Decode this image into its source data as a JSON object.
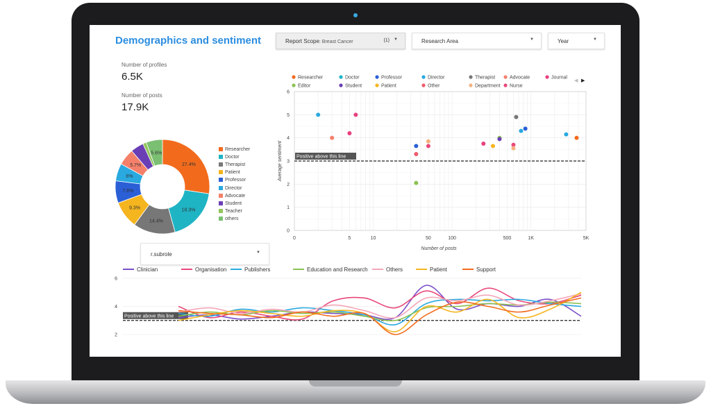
{
  "header": {
    "title": "Demographics and sentiment",
    "report_scope_label": "Report Scope",
    "report_scope_value": ": Breast Cancer",
    "report_scope_count": "(1)",
    "research_area_label": "Research Area",
    "year_label": "Year"
  },
  "kpis": {
    "profiles_label": "Number of profiles",
    "profiles_value": "6.5K",
    "posts_label": "Number of posts",
    "posts_value": "17.9K"
  },
  "subrole_dropdown": {
    "label": "r.subrole"
  },
  "colors": {
    "Researcher": "#f26b1d",
    "Doctor": "#1fb4c4",
    "Professor": "#2a5fd6",
    "Director": "#29a9e0",
    "Therapist": "#777777",
    "Advocate": "#f4806a",
    "Journal": "#e8407f",
    "Editor": "#8cc152",
    "Student": "#6a3fb5",
    "Patient": "#f5b51f",
    "Other": "#ef5b6b",
    "Department": "#f5b07e",
    "Nurse": "#e8497a",
    "Teacher": "#92c55c",
    "others": "#7bbf72"
  },
  "chart_data": [
    {
      "type": "pie",
      "slices": [
        {
          "label": "Researcher",
          "value": 27.4,
          "text": "27.4%"
        },
        {
          "label": "Doctor",
          "value": 18.3,
          "text": "18.3%"
        },
        {
          "label": "Therapist",
          "value": 14.4,
          "text": "14.4%"
        },
        {
          "label": "Patient",
          "value": 9.3,
          "text": "9.3%"
        },
        {
          "label": "Professor",
          "value": 7.6,
          "text": "7.6%"
        },
        {
          "label": "Director",
          "value": 6.0,
          "text": "6%"
        },
        {
          "label": "Advocate",
          "value": 5.7,
          "text": "5.7%"
        },
        {
          "label": "Student",
          "value": 4.5,
          "text": ""
        },
        {
          "label": "Teacher",
          "value": 1.2,
          "text": ""
        },
        {
          "label": "others",
          "value": 5.6,
          "text": "5.6%"
        }
      ],
      "legend": [
        "Researcher",
        "Doctor",
        "Therapist",
        "Patient",
        "Professor",
        "Director",
        "Advocate",
        "Student",
        "Teacher",
        "others"
      ]
    },
    {
      "type": "scatter",
      "xlabel": "Number of posts",
      "ylabel": "Average sentiment",
      "x_scale": "log",
      "x_ticks": [
        "0",
        "5",
        "10",
        "50",
        "100",
        "500",
        "1K",
        "5K"
      ],
      "x_tick_values": [
        1,
        5,
        10,
        50,
        100,
        500,
        1000,
        5000
      ],
      "ylim": [
        0,
        6
      ],
      "y_ticks": [
        "0",
        "1",
        "2",
        "3",
        "4",
        "5",
        "6"
      ],
      "reference_line": {
        "y": 3,
        "label": "Positive above this line"
      },
      "legend": [
        "Researcher",
        "Doctor",
        "Professor",
        "Director",
        "Therapist",
        "Advocate",
        "Journal",
        "Editor",
        "Student",
        "Patient",
        "Other",
        "Department",
        "Nurse"
      ],
      "points": [
        {
          "series": "Director",
          "x": 2,
          "y": 5.0
        },
        {
          "series": "Journal",
          "x": 6,
          "y": 5.0
        },
        {
          "series": "Advocate",
          "x": 3,
          "y": 4.0
        },
        {
          "series": "Journal",
          "x": 5,
          "y": 4.2
        },
        {
          "series": "Professor",
          "x": 35,
          "y": 3.65
        },
        {
          "series": "Other",
          "x": 35,
          "y": 3.3
        },
        {
          "series": "Editor",
          "x": 35,
          "y": 2.05
        },
        {
          "series": "Department",
          "x": 50,
          "y": 3.85
        },
        {
          "series": "Nurse",
          "x": 50,
          "y": 3.65
        },
        {
          "series": "Journal",
          "x": 250,
          "y": 3.75
        },
        {
          "series": "Patient",
          "x": 330,
          "y": 3.65
        },
        {
          "series": "Editor",
          "x": 400,
          "y": 4.0
        },
        {
          "series": "Student",
          "x": 400,
          "y": 3.95
        },
        {
          "series": "Nurse",
          "x": 600,
          "y": 3.7
        },
        {
          "series": "Department",
          "x": 600,
          "y": 3.55
        },
        {
          "series": "Therapist",
          "x": 650,
          "y": 4.9
        },
        {
          "series": "Director",
          "x": 750,
          "y": 4.3
        },
        {
          "series": "Professor",
          "x": 850,
          "y": 4.4
        },
        {
          "series": "Director",
          "x": 2800,
          "y": 4.15
        },
        {
          "series": "Researcher",
          "x": 3800,
          "y": 4.0
        }
      ]
    },
    {
      "type": "line",
      "ylim": [
        2,
        6
      ],
      "y_ticks": [
        "2",
        "4",
        "6"
      ],
      "reference_line": {
        "y": 3,
        "label": "Positive above this line"
      },
      "x": [
        0,
        1,
        2,
        3,
        4,
        5,
        6,
        7,
        8,
        9,
        10,
        11,
        12,
        13
      ],
      "series": [
        {
          "name": "Clinician",
          "color": "#7b4fc9",
          "values": [
            3.2,
            3.4,
            3.1,
            3.3,
            3.6,
            3.5,
            3.4,
            3.2,
            5.5,
            3.8,
            4.2,
            4.0,
            4.5,
            3.3
          ]
        },
        {
          "name": "Organisation",
          "color": "#e8497a",
          "values": [
            4.0,
            3.2,
            3.6,
            3.3,
            3.1,
            4.4,
            4.6,
            3.9,
            5.1,
            4.2,
            5.3,
            4.4,
            4.2,
            4.8
          ]
        },
        {
          "name": "Publishers",
          "color": "#29a9e0",
          "values": [
            3.5,
            3.3,
            3.8,
            3.6,
            3.9,
            3.7,
            3.4,
            2.7,
            4.2,
            4.5,
            4.4,
            4.5,
            4.2,
            4.0
          ]
        },
        {
          "name": "Education and Research",
          "color": "#8cc152",
          "values": [
            3.3,
            3.6,
            3.4,
            3.7,
            3.5,
            3.6,
            3.3,
            3.0,
            3.9,
            4.0,
            4.2,
            4.1,
            4.3,
            4.2
          ]
        },
        {
          "name": "Others",
          "color": "#f4a6b8",
          "values": [
            3.6,
            3.9,
            3.5,
            3.8,
            3.6,
            4.1,
            3.7,
            3.2,
            4.6,
            4.4,
            4.8,
            4.1,
            4.4,
            4.9
          ]
        },
        {
          "name": "Patient",
          "color": "#f5b51f",
          "values": [
            3.0,
            3.4,
            3.7,
            3.5,
            3.3,
            3.7,
            3.5,
            2.2,
            4.0,
            3.6,
            4.5,
            3.2,
            3.8,
            5.0
          ]
        },
        {
          "name": "Support",
          "color": "#f26b1d",
          "values": [
            3.7,
            3.5,
            3.4,
            3.2,
            3.6,
            3.3,
            3.5,
            2.0,
            3.4,
            4.3,
            4.0,
            3.6,
            4.1,
            4.6
          ]
        }
      ]
    }
  ]
}
